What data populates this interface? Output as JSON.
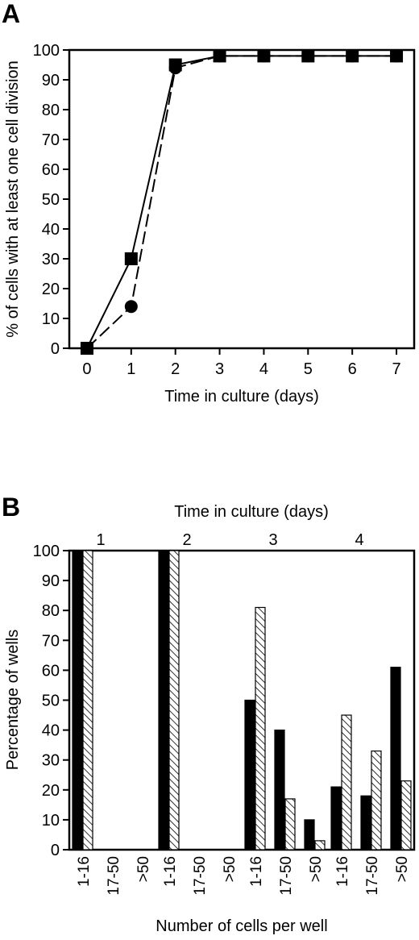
{
  "chart_data": [
    {
      "type": "line",
      "panel_label": "A",
      "xlabel": "Time in culture (days)",
      "ylabel": "% of cells with at least one cell division",
      "x": [
        0,
        1,
        2,
        3,
        4,
        5,
        6,
        7
      ],
      "xlim": [
        -0.4,
        7.4
      ],
      "ylim": [
        0,
        100
      ],
      "x_ticks": [
        "0",
        "1",
        "2",
        "3",
        "4",
        "5",
        "6",
        "7"
      ],
      "y_ticks": [
        "0",
        "10",
        "20",
        "30",
        "40",
        "50",
        "60",
        "70",
        "80",
        "90",
        "100"
      ],
      "series": [
        {
          "marker": "square",
          "line": "solid",
          "values": [
            0,
            30,
            95,
            98,
            98,
            98,
            98,
            98
          ]
        },
        {
          "marker": "circle",
          "line": "dashed",
          "values": [
            0,
            14,
            94,
            98,
            98,
            98,
            98,
            98
          ]
        }
      ],
      "grid": false
    },
    {
      "type": "bar",
      "panel_label": "B",
      "top_label": "Time in culture (days)",
      "groups": [
        "1",
        "2",
        "3",
        "4"
      ],
      "categories": [
        "1-16",
        "17-50",
        ">50"
      ],
      "xlabel": "Number of cells per well",
      "ylabel": "Percentage of wells",
      "ylim": [
        0,
        100
      ],
      "y_ticks": [
        "0",
        "10",
        "20",
        "30",
        "40",
        "50",
        "60",
        "70",
        "80",
        "90",
        "100"
      ],
      "series": [
        {
          "fill": "#000000",
          "values": [
            [
              100,
              0,
              0
            ],
            [
              100,
              0,
              0
            ],
            [
              50,
              40,
              10
            ],
            [
              21,
              18,
              61
            ]
          ]
        },
        {
          "fill": "hatched",
          "values": [
            [
              100,
              0,
              0
            ],
            [
              100,
              0,
              0
            ],
            [
              81,
              17,
              3
            ],
            [
              45,
              33,
              23
            ]
          ]
        }
      ],
      "grid": false
    }
  ]
}
